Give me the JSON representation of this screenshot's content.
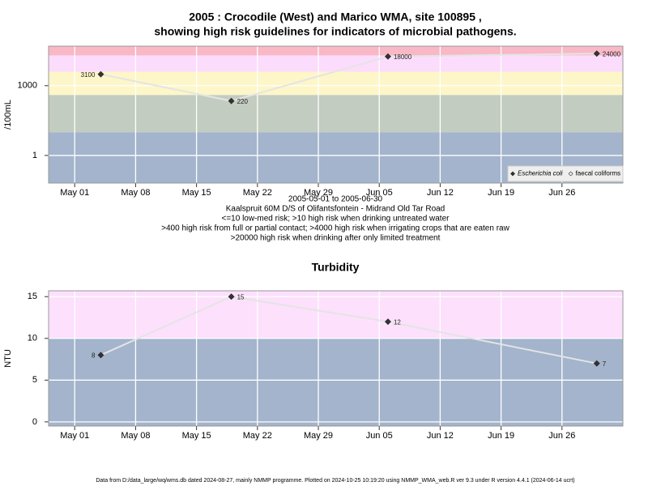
{
  "chart_data": [
    {
      "type": "line",
      "title": [
        "2005 : Crocodile (West) and Marico WMA, site 100895 ,",
        "showing high risk guidelines for indicators of microbial pathogens."
      ],
      "ylabel": "/100mL",
      "annotations": [
        "2005-05-01 to 2005-06-30",
        "Kaalspruit 60M D/S of Olifantsfontein - Midrand Old Tar Road",
        "<=10 low-med risk; >10 high risk when drinking untreated water",
        ">400 high risk from full or partial contact; >4000 high risk when irrigating crops that are eaten raw",
        ">20000 high risk when drinking after only limited treatment"
      ],
      "x": [
        "2005-05-04",
        "2005-05-19",
        "2005-06-06",
        "2005-06-30"
      ],
      "series": [
        {
          "name": "Escherichia coli",
          "color": "#333333",
          "values": [
            3100,
            220,
            18000,
            24000
          ]
        },
        {
          "name": "faecal coliforms",
          "color": "#ffffff",
          "values": [
            null,
            null,
            null,
            null
          ]
        }
      ],
      "line_color": "#e4e4e4",
      "log_y": true,
      "ylim": [
        0.065,
        50000
      ],
      "yticks": [
        1,
        1000
      ],
      "xlim": [
        "2005-04-28",
        "2005-07-03"
      ],
      "xticks": [
        {
          "value": "2005-05-01",
          "label": "May 01"
        },
        {
          "value": "2005-05-08",
          "label": "May 08"
        },
        {
          "value": "2005-05-15",
          "label": "May 15"
        },
        {
          "value": "2005-05-22",
          "label": "May 22"
        },
        {
          "value": "2005-05-29",
          "label": "May 29"
        },
        {
          "value": "2005-06-05",
          "label": "Jun 05"
        },
        {
          "value": "2005-06-12",
          "label": "Jun 12"
        },
        {
          "value": "2005-06-19",
          "label": "Jun 19"
        },
        {
          "value": "2005-06-26",
          "label": "Jun 26"
        }
      ],
      "thresholds": [
        10,
        400,
        4000,
        20000
      ],
      "band_colors": [
        "#a3b4cc",
        "#c3ccc0",
        "#fdf6c8",
        "#fcdcfc",
        "#f8b8c6"
      ],
      "grid": true,
      "legend": "bottom right"
    },
    {
      "type": "line",
      "title": "Turbidity",
      "ylabel": "NTU",
      "x": [
        "2005-05-04",
        "2005-05-19",
        "2005-06-06",
        "2005-06-30"
      ],
      "series": [
        {
          "name": "Turbidity",
          "color": "#333333",
          "values": [
            8,
            15,
            12,
            7
          ]
        }
      ],
      "line_color": "#e4e4e4",
      "log_y": false,
      "ylim": [
        -0.5,
        15.7
      ],
      "yticks": [
        0,
        5,
        10,
        15
      ],
      "xlim": [
        "2005-04-28",
        "2005-07-03"
      ],
      "xticks": [
        {
          "value": "2005-05-01",
          "label": "May 01"
        },
        {
          "value": "2005-05-08",
          "label": "May 08"
        },
        {
          "value": "2005-05-15",
          "label": "May 15"
        },
        {
          "value": "2005-05-22",
          "label": "May 22"
        },
        {
          "value": "2005-05-29",
          "label": "May 29"
        },
        {
          "value": "2005-06-05",
          "label": "Jun 05"
        },
        {
          "value": "2005-06-12",
          "label": "Jun 12"
        },
        {
          "value": "2005-06-19",
          "label": "Jun 19"
        },
        {
          "value": "2005-06-26",
          "label": "Jun 26"
        }
      ],
      "thresholds": [
        10
      ],
      "band_colors": [
        "#a3b4cc",
        "#fce0fc"
      ],
      "grid": true
    }
  ],
  "footer": "Data from D:/data_large/wq/wms.db dated 2024-08-27, mainly NMMP programme. Plotted on 2024-10-25 10:19:20 using NMMP_WMA_web.R ver 9.3 under R version 4.4.1 (2024-06-14 ucrt)"
}
